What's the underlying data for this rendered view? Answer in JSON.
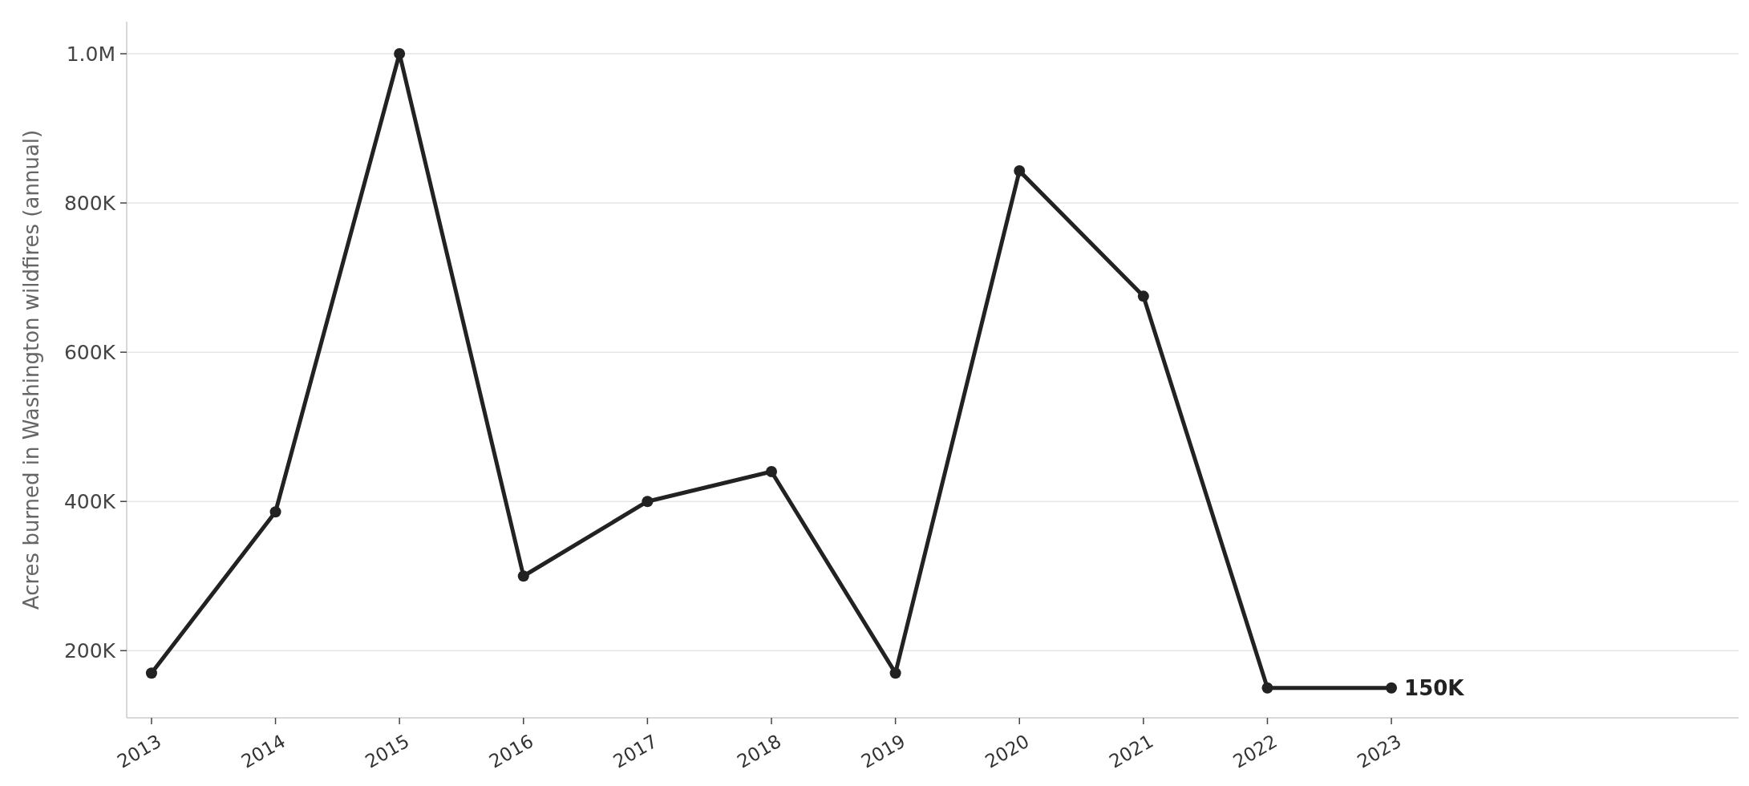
{
  "chart_data": {
    "type": "line",
    "ylabel": "Acres burned in Washington wildfires (annual)",
    "x": [
      2013,
      2014,
      2015,
      2016,
      2017,
      2018,
      2019,
      2020,
      2021,
      2022,
      2023
    ],
    "series": [
      {
        "color": "#222222",
        "values": [
          170000,
          386000,
          1000000,
          300000,
          400000,
          440000,
          170000,
          843000,
          675000,
          150000,
          150000
        ]
      }
    ],
    "xlim": [
      2012.8,
      2025.8
    ],
    "xticks": [
      2013,
      2014,
      2015,
      2016,
      2017,
      2018,
      2019,
      2020,
      2021,
      2022,
      2023
    ],
    "ylim": [
      110000,
      1043000
    ],
    "yticks": [
      {
        "value": 200000,
        "label": "200K"
      },
      {
        "value": 400000,
        "label": "400K"
      },
      {
        "value": 600000,
        "label": "600K"
      },
      {
        "value": 800000,
        "label": "800K"
      },
      {
        "value": 1000000,
        "label": "1.0M"
      }
    ],
    "annotations": [
      {
        "text": "150K",
        "x": 2023,
        "y": 150000
      }
    ],
    "grid": "y",
    "marker": "circle",
    "line_style": "solid"
  }
}
